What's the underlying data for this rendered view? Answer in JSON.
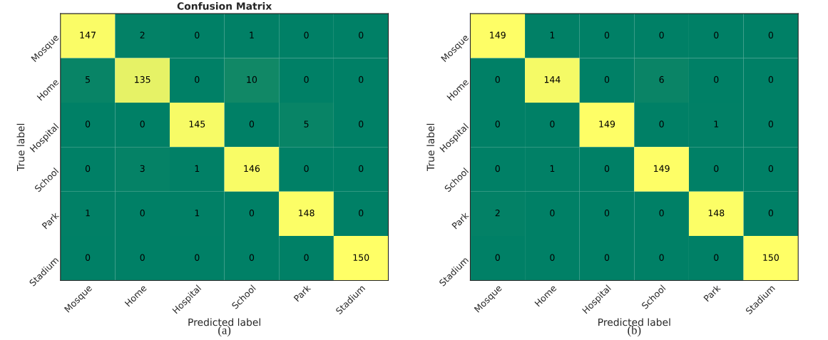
{
  "chart_data": [
    {
      "type": "heatmap",
      "title": "Confusion Matrix",
      "xlabel": "Predicted label",
      "ylabel": "True label",
      "categories": [
        "Mosque",
        "Home",
        "Hospital",
        "School",
        "Park",
        "Stadium"
      ],
      "y_categories": [
        "Mosque",
        "Home",
        "Hospital",
        "School",
        "Park",
        "Stadium"
      ],
      "cells": [
        [
          147,
          2,
          0,
          1,
          0,
          0
        ],
        [
          5,
          135,
          0,
          10,
          0,
          0
        ],
        [
          0,
          0,
          145,
          0,
          5,
          0
        ],
        [
          0,
          3,
          1,
          146,
          0,
          0
        ],
        [
          1,
          0,
          1,
          0,
          148,
          0
        ],
        [
          0,
          0,
          0,
          0,
          0,
          150
        ]
      ],
      "data_labels": true,
      "annotations": [
        "(a)"
      ]
    },
    {
      "type": "heatmap",
      "xlabel": "Predicted label",
      "ylabel": "True label",
      "categories": [
        "Mosque",
        "Home",
        "Hospital",
        "School",
        "Park",
        "Stadium"
      ],
      "y_categories": [
        "Mosque",
        "Home",
        "Hospital",
        "School",
        "Park",
        "Stadium"
      ],
      "cells": [
        [
          149,
          1,
          0,
          0,
          0,
          0
        ],
        [
          0,
          144,
          0,
          6,
          0,
          0
        ],
        [
          0,
          0,
          149,
          0,
          1,
          0
        ],
        [
          0,
          1,
          0,
          149,
          0,
          0
        ],
        [
          2,
          0,
          0,
          0,
          148,
          0
        ],
        [
          0,
          0,
          0,
          0,
          0,
          150
        ]
      ],
      "data_labels": true,
      "annotations": [
        "(b)"
      ]
    }
  ]
}
